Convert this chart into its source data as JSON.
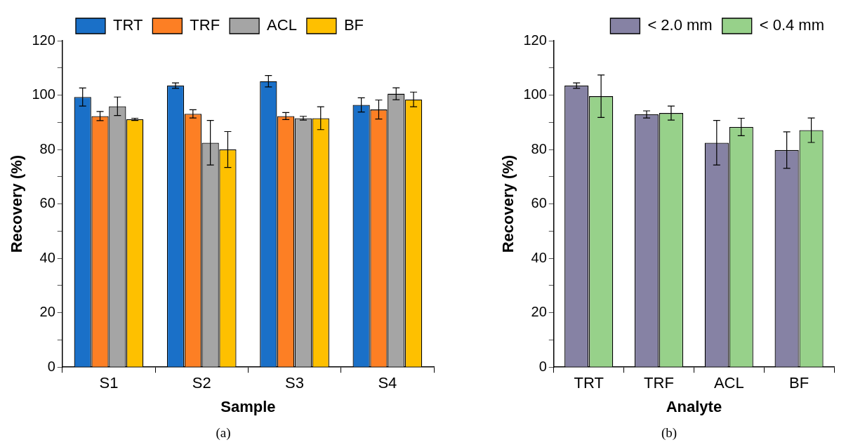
{
  "chart_data": [
    {
      "type": "bar",
      "categories": [
        "S1",
        "S2",
        "S3",
        "S4"
      ],
      "xlabel": "Sample",
      "ylabel": "Recovery (%)",
      "ylim": [
        0,
        120
      ],
      "yticks": [
        0,
        {
          "value": 10,
          "label": null
        },
        20,
        {
          "value": 30,
          "label": null
        },
        40,
        {
          "value": 50,
          "label": null
        },
        60,
        {
          "value": 70,
          "label": null
        },
        80,
        {
          "value": 90,
          "label": null
        },
        100,
        {
          "value": 110,
          "label": null
        },
        120
      ],
      "grid": false,
      "legend": "top",
      "annotations": [
        "(a)"
      ],
      "series": [
        {
          "name": "TRT",
          "color": "#1a70c8",
          "values": [
            99.3,
            103.5,
            105.1,
            96.4
          ],
          "errors": [
            3.3,
            1.0,
            2.1,
            2.6
          ]
        },
        {
          "name": "TRF",
          "color": "#fd7f24",
          "values": [
            92.3,
            93.1,
            92.3,
            94.7
          ],
          "errors": [
            1.7,
            1.5,
            1.3,
            3.5
          ]
        },
        {
          "name": "ACL",
          "color": "#a5a5a5",
          "values": [
            95.9,
            82.5,
            91.5,
            100.5
          ],
          "errors": [
            3.4,
            8.2,
            0.7,
            2.2
          ]
        },
        {
          "name": "BF",
          "color": "#fec000",
          "values": [
            91.1,
            80.0,
            91.5,
            98.4
          ],
          "errors": [
            0.4,
            6.6,
            4.2,
            2.7
          ]
        }
      ]
    },
    {
      "type": "bar",
      "categories": [
        "TRT",
        "TRF",
        "ACL",
        "BF"
      ],
      "xlabel": "Analyte",
      "ylabel": "Recovery (%)",
      "ylim": [
        0,
        120
      ],
      "yticks": [
        0,
        {
          "value": 10,
          "label": null
        },
        20,
        {
          "value": 30,
          "label": null
        },
        40,
        {
          "value": 50,
          "label": null
        },
        60,
        {
          "value": 70,
          "label": null
        },
        80,
        {
          "value": 90,
          "label": null
        },
        100,
        {
          "value": 110,
          "label": null
        },
        120
      ],
      "grid": false,
      "legend": "top right",
      "annotations": [
        "(b)"
      ],
      "series": [
        {
          "name": "< 2.0 mm",
          "color": "#8682a4",
          "values": [
            103.5,
            92.9,
            82.5,
            79.8
          ],
          "errors": [
            1.0,
            1.3,
            8.2,
            6.7
          ]
        },
        {
          "name": "< 0.4 mm",
          "color": "#97d18a",
          "values": [
            99.6,
            93.4,
            88.3,
            87.1
          ],
          "errors": [
            7.8,
            2.6,
            3.2,
            4.5
          ]
        }
      ]
    }
  ]
}
